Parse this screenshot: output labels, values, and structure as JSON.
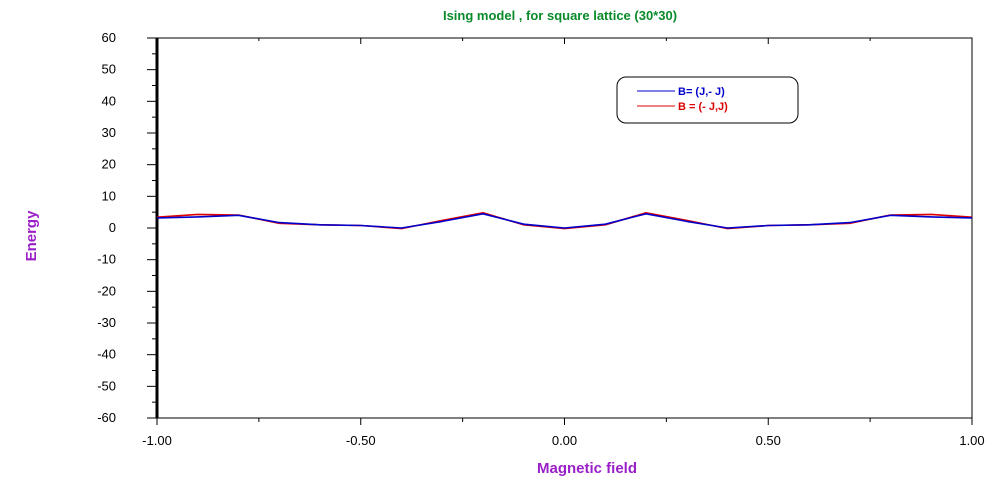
{
  "chart_data": {
    "type": "line",
    "title": "Ising model , for square lattice (30*30)",
    "xlabel": "Magnetic field",
    "ylabel": "Energy",
    "xlim": [
      -1.0,
      1.0
    ],
    "ylim": [
      -60,
      60
    ],
    "x_ticks": [
      -1.0,
      -0.5,
      0.0,
      0.5,
      1.0
    ],
    "x_tick_labels": [
      "-1.00",
      "-0.50",
      "0.00",
      "0.50",
      "1.00"
    ],
    "y_ticks": [
      60,
      50,
      40,
      30,
      20,
      10,
      0,
      -10,
      -20,
      -30,
      -40,
      -50,
      -60
    ],
    "y_tick_labels": [
      "60",
      "50",
      "40",
      "30",
      "20",
      "10",
      "0",
      "-10",
      "-20",
      "-30",
      "-40",
      "-50",
      "-60"
    ],
    "grid": false,
    "legend_position": "top-right",
    "series": [
      {
        "name": "B= (J,- J)",
        "color": "#0000cc",
        "x": [
          -1.0,
          -0.9,
          -0.8,
          -0.7,
          -0.6,
          -0.5,
          -0.4,
          -0.3,
          -0.2,
          -0.1,
          0.0,
          0.1,
          0.2,
          0.3,
          0.4,
          0.5,
          0.6,
          0.7,
          0.8,
          0.9,
          1.0
        ],
        "y": [
          3.2,
          3.5,
          4.0,
          1.7,
          1.0,
          0.8,
          0.0,
          2.1,
          4.5,
          1.2,
          0.0,
          1.2,
          4.5,
          2.1,
          0.0,
          0.8,
          1.0,
          1.7,
          4.0,
          3.5,
          3.2
        ]
      },
      {
        "name": "B = (- J,J)",
        "color": "#dd0000",
        "x": [
          -1.0,
          -0.9,
          -0.8,
          -0.7,
          -0.6,
          -0.5,
          -0.4,
          -0.3,
          -0.2,
          -0.1,
          0.0,
          0.1,
          0.2,
          0.3,
          0.4,
          0.5,
          0.6,
          0.7,
          0.8,
          0.9,
          1.0
        ],
        "y": [
          3.4,
          4.3,
          4.1,
          1.5,
          1.0,
          0.8,
          -0.2,
          2.4,
          4.8,
          1.0,
          -0.2,
          1.0,
          4.8,
          2.4,
          -0.2,
          0.8,
          1.0,
          1.5,
          4.1,
          4.3,
          3.4
        ]
      }
    ]
  },
  "colors": {
    "title": "#0a8a2a",
    "axis_titles": "#9b1fc8",
    "axis": "#000000"
  }
}
